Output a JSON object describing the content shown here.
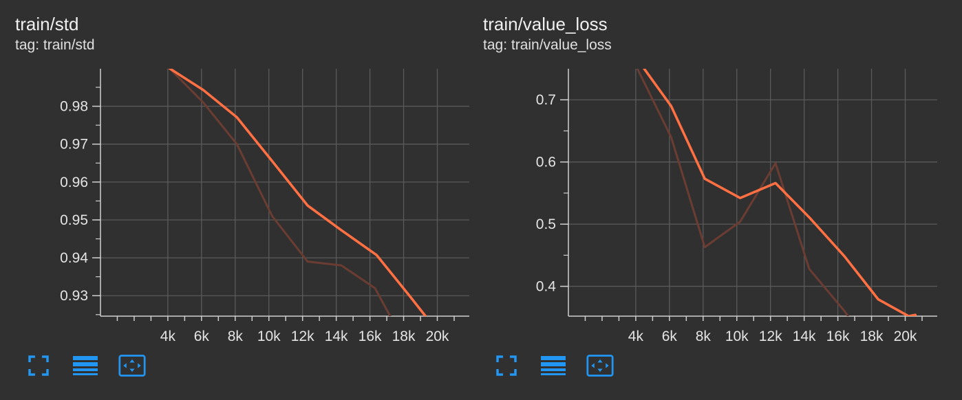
{
  "colors": {
    "background": "#303030",
    "grid": "#5a5a5a",
    "axis": "#cfcfcf",
    "smoothed": "#ff7043",
    "raw": "#6b3d32",
    "icon": "#2196f3"
  },
  "toolbar": {
    "icons": [
      "fullscreen-icon",
      "list-icon",
      "fit-domain-icon"
    ]
  },
  "chart_data": [
    {
      "type": "line",
      "title": "train/std",
      "subtitle": "tag: train/std",
      "xlabel": "",
      "ylabel": "",
      "xlim": [
        0,
        21900
      ],
      "ylim": [
        0.9246,
        0.9899
      ],
      "x_ticks": [
        4000,
        6000,
        8000,
        10000,
        12000,
        14000,
        16000,
        18000,
        20000
      ],
      "x_tick_labels": [
        "4k",
        "6k",
        "8k",
        "10k",
        "12k",
        "14k",
        "16k",
        "18k",
        "20k"
      ],
      "y_ticks": [
        0.93,
        0.94,
        0.95,
        0.96,
        0.97,
        0.98
      ],
      "y_tick_labels": [
        "0.93",
        "0.94",
        "0.95",
        "0.96",
        "0.97",
        "0.98"
      ],
      "grid": true,
      "series": [
        {
          "role": "raw",
          "x": [
            4100,
            6100,
            8100,
            10200,
            12300,
            14300,
            16300,
            17200
          ],
          "y": [
            0.99,
            0.981,
            0.97,
            0.951,
            0.939,
            0.938,
            0.932,
            0.9246
          ]
        },
        {
          "role": "smoothed",
          "x": [
            4100,
            6100,
            8100,
            10200,
            12300,
            14300,
            16400,
            18400,
            19300
          ],
          "y": [
            0.99,
            0.9843,
            0.9771,
            0.9655,
            0.9538,
            0.9473,
            0.9407,
            0.9297,
            0.9246
          ]
        }
      ]
    },
    {
      "type": "line",
      "title": "train/value_loss",
      "subtitle": "tag: train/value_loss",
      "xlabel": "",
      "ylabel": "",
      "xlim": [
        0,
        21900
      ],
      "ylim": [
        0.352,
        0.75
      ],
      "x_ticks": [
        4000,
        6000,
        8000,
        10000,
        12000,
        14000,
        16000,
        18000,
        20000
      ],
      "x_tick_labels": [
        "4k",
        "6k",
        "8k",
        "10k",
        "12k",
        "14k",
        "16k",
        "18k",
        "20k"
      ],
      "y_ticks": [
        0.4,
        0.5,
        0.6,
        0.7
      ],
      "y_tick_labels": [
        "0.4",
        "0.5",
        "0.6",
        "0.7"
      ],
      "grid": true,
      "series": [
        {
          "role": "raw",
          "x": [
            4100,
            6100,
            8100,
            10200,
            12300,
            14300,
            16400,
            16600
          ],
          "y": [
            0.75,
            0.64,
            0.463,
            0.504,
            0.598,
            0.428,
            0.36,
            0.352
          ]
        },
        {
          "role": "smoothed",
          "x": [
            4500,
            6100,
            8100,
            10200,
            12300,
            14300,
            16400,
            18400,
            20200,
            20600
          ],
          "y": [
            0.75,
            0.69,
            0.573,
            0.542,
            0.566,
            0.511,
            0.448,
            0.379,
            0.352,
            0.354
          ]
        }
      ]
    }
  ]
}
